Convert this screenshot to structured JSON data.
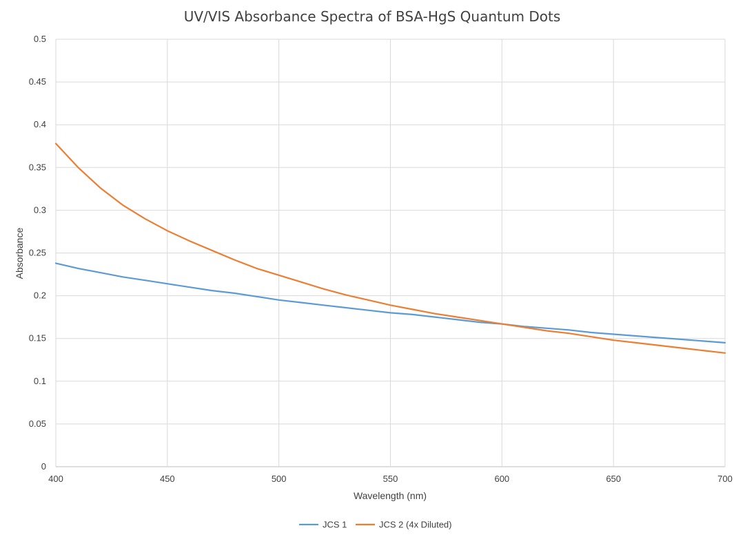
{
  "chart_data": {
    "type": "line",
    "title": "UV/VIS Absorbance Spectra of BSA-HgS Quantum Dots",
    "xlabel": "Wavelength (nm)",
    "ylabel": "Absorbance",
    "xlim": [
      400,
      700
    ],
    "ylim": [
      0,
      0.5
    ],
    "xticks": [
      400,
      450,
      500,
      550,
      600,
      650,
      700
    ],
    "yticks": [
      0,
      0.05,
      0.1,
      0.15,
      0.2,
      0.25,
      0.3,
      0.35,
      0.4,
      0.45,
      0.5
    ],
    "xtick_labels": [
      "400",
      "450",
      "500",
      "550",
      "600",
      "650",
      "700"
    ],
    "ytick_labels": [
      "0",
      "0.05",
      "0.1",
      "0.15",
      "0.2",
      "0.25",
      "0.3",
      "0.35",
      "0.4",
      "0.45",
      "0.5"
    ],
    "grid": true,
    "legend_position": "bottom",
    "x": [
      400,
      410,
      420,
      430,
      440,
      450,
      460,
      470,
      480,
      490,
      500,
      510,
      520,
      530,
      540,
      550,
      560,
      570,
      580,
      590,
      600,
      610,
      620,
      630,
      640,
      650,
      660,
      670,
      680,
      690,
      700
    ],
    "series": [
      {
        "name": "JCS 1",
        "color": "#5b9bd5",
        "values": [
          0.238,
          0.232,
          0.227,
          0.222,
          0.218,
          0.214,
          0.21,
          0.206,
          0.203,
          0.199,
          0.195,
          0.192,
          0.189,
          0.186,
          0.183,
          0.18,
          0.178,
          0.175,
          0.172,
          0.169,
          0.167,
          0.164,
          0.162,
          0.16,
          0.157,
          0.155,
          0.153,
          0.151,
          0.149,
          0.147,
          0.145
        ]
      },
      {
        "name": "JCS 2 (4x Diluted)",
        "color": "#ed7d31",
        "values": [
          0.378,
          0.35,
          0.326,
          0.306,
          0.29,
          0.276,
          0.264,
          0.253,
          0.242,
          0.232,
          0.224,
          0.216,
          0.208,
          0.201,
          0.195,
          0.189,
          0.184,
          0.179,
          0.175,
          0.171,
          0.167,
          0.163,
          0.159,
          0.156,
          0.152,
          0.148,
          0.145,
          0.142,
          0.139,
          0.136,
          0.133
        ]
      }
    ]
  }
}
